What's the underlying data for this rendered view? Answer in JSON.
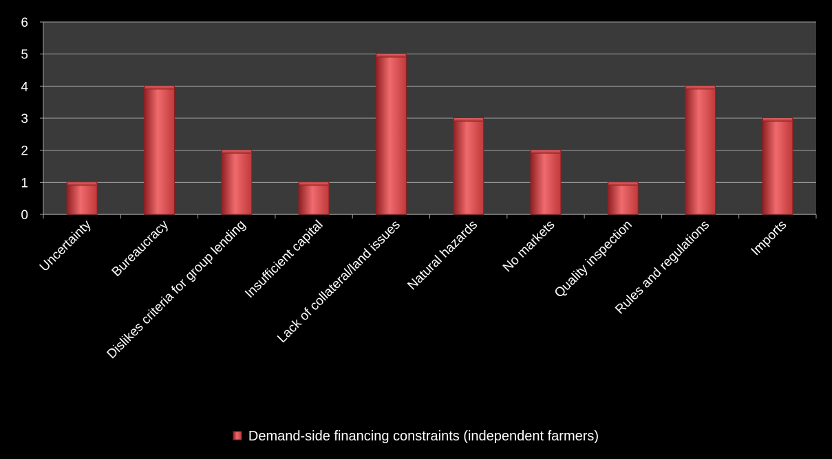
{
  "chart_data": {
    "type": "bar",
    "title": "",
    "xlabel": "",
    "ylabel": "",
    "categories": [
      "Uncertainty",
      "Bureaucracy",
      "Dislikes criteria for group lending",
      "Insufficient capital",
      "Lack of collateral/land issues",
      "Natural hazards",
      "No markets",
      "Quality inspection",
      "Rules and regulations",
      "Imports"
    ],
    "series": [
      {
        "name": "Demand-side financing constraints (independent farmers)",
        "values": [
          1,
          4,
          2,
          1,
          5,
          3,
          2,
          1,
          4,
          3
        ]
      }
    ],
    "ylim": [
      0,
      6
    ],
    "yticks": [
      "0",
      "1",
      "2",
      "3",
      "4",
      "5",
      "6"
    ],
    "grid": true,
    "legend_position": "bottom",
    "colors": {
      "background": "#000000",
      "plot_background": "#3a3a3a",
      "gridline": "#a6a6a6",
      "bar": "#c0393b",
      "bar_light": "#ef6b6d",
      "bar_dark": "#8e1f22",
      "text": "#ffffff"
    }
  }
}
